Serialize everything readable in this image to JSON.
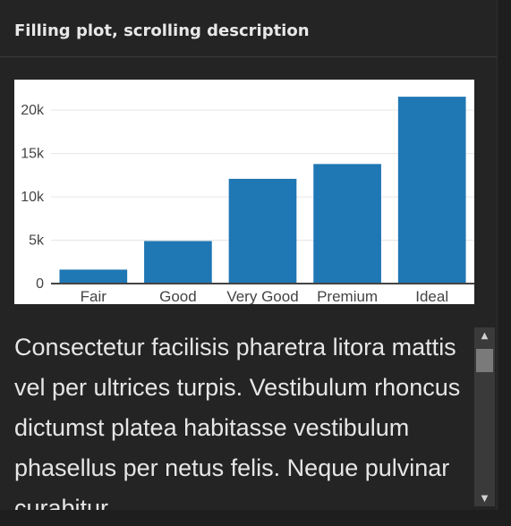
{
  "panel": {
    "title": "Filling plot, scrolling description"
  },
  "description": {
    "text": "Consectetur facilisis pharetra litora mattis vel per ultrices turpis. Vestibulum rhoncus dictumst platea habitasse vestibulum phasellus per netus felis. Neque pulvinar curabitur"
  },
  "scrollbar": {
    "up_icon": "triangle-up-icon",
    "down_icon": "triangle-down-icon"
  },
  "chart_data": {
    "type": "bar",
    "categories": [
      "Fair",
      "Good",
      "Very Good",
      "Premium",
      "Ideal"
    ],
    "values": [
      1610,
      4906,
      12082,
      13791,
      21551
    ],
    "ylim": [
      0,
      22700
    ],
    "yticks": [
      0,
      5000,
      10000,
      15000,
      20000
    ],
    "yticklabels": [
      "0",
      "5k",
      "10k",
      "15k",
      "20k"
    ],
    "bar_color": "#1f77b4",
    "grid": true,
    "title": "",
    "xlabel": "",
    "ylabel": ""
  }
}
